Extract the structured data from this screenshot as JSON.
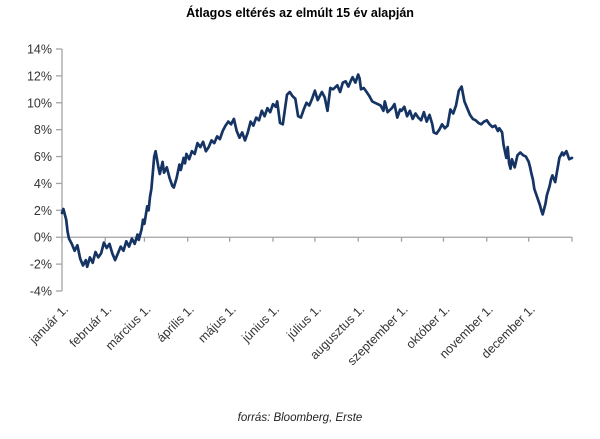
{
  "footer": {
    "source": "forrás: Bloomberg, Erste"
  },
  "chart_data": {
    "type": "line",
    "title": "Átlagos eltérés az elmúlt 15 év alapján",
    "xlabel": "",
    "ylabel": "",
    "legend": "none",
    "grid": false,
    "ylim": [
      -4,
      14
    ],
    "y_tick_values": [
      14,
      12,
      10,
      8,
      6,
      4,
      2,
      0,
      -2,
      -4
    ],
    "y_tick_labels": [
      "14%",
      "12%",
      "10%",
      "8%",
      "6%",
      "4%",
      "2%",
      "0%",
      "-2%",
      "-4%"
    ],
    "x_tick_labels": [
      "január 1.",
      "február 1.",
      "március 1.",
      "április 1.",
      "május 1.",
      "június 1.",
      "július 1.",
      "augusztus 1.",
      "szeptember 1.",
      "október 1.",
      "november 1.",
      "december 1."
    ],
    "x_range_days": [
      0,
      365
    ],
    "month_start_days": [
      0,
      31,
      59,
      90,
      120,
      151,
      181,
      212,
      243,
      273,
      304,
      334,
      365
    ],
    "line_color": "#153464",
    "axis_color": "#a3a3a3",
    "text_color": "#333333",
    "series": [
      {
        "name": "Átlagos eltérés az elmúlt 15 év alapján (napi, %)",
        "points": [
          [
            0,
            1.8
          ],
          [
            1,
            2.1
          ],
          [
            3,
            1.3
          ],
          [
            4,
            0.4
          ],
          [
            5,
            -0.1
          ],
          [
            7,
            -0.5
          ],
          [
            9,
            -1.0
          ],
          [
            11,
            -0.6
          ],
          [
            13,
            -1.6
          ],
          [
            15,
            -2.1
          ],
          [
            17,
            -1.7
          ],
          [
            18,
            -2.2
          ],
          [
            20,
            -1.5
          ],
          [
            22,
            -1.9
          ],
          [
            24,
            -1.1
          ],
          [
            26,
            -1.5
          ],
          [
            28,
            -1.2
          ],
          [
            30,
            -0.4
          ],
          [
            32,
            -0.8
          ],
          [
            34,
            -0.5
          ],
          [
            36,
            -1.2
          ],
          [
            38,
            -1.7
          ],
          [
            40,
            -1.2
          ],
          [
            42,
            -0.7
          ],
          [
            44,
            -1.0
          ],
          [
            46,
            -0.3
          ],
          [
            48,
            -0.7
          ],
          [
            50,
            -0.1
          ],
          [
            52,
            -0.5
          ],
          [
            54,
            0.2
          ],
          [
            55,
            -0.2
          ],
          [
            57,
            0.6
          ],
          [
            58,
            1.3
          ],
          [
            59,
            1.0
          ],
          [
            61,
            2.3
          ],
          [
            62,
            2.0
          ],
          [
            63,
            3.0
          ],
          [
            64,
            3.6
          ],
          [
            65,
            4.8
          ],
          [
            66,
            6.0
          ],
          [
            67,
            6.4
          ],
          [
            68,
            5.8
          ],
          [
            69,
            5.2
          ],
          [
            70,
            4.7
          ],
          [
            72,
            5.6
          ],
          [
            73,
            4.8
          ],
          [
            75,
            5.2
          ],
          [
            77,
            4.4
          ],
          [
            79,
            3.8
          ],
          [
            80,
            3.7
          ],
          [
            82,
            4.4
          ],
          [
            84,
            5.4
          ],
          [
            85,
            5.0
          ],
          [
            87,
            5.9
          ],
          [
            88,
            5.5
          ],
          [
            89,
            6.2
          ],
          [
            91,
            5.8
          ],
          [
            93,
            6.4
          ],
          [
            95,
            6.2
          ],
          [
            97,
            7.0
          ],
          [
            99,
            6.7
          ],
          [
            101,
            7.1
          ],
          [
            103,
            6.4
          ],
          [
            105,
            6.7
          ],
          [
            107,
            7.2
          ],
          [
            109,
            7.0
          ],
          [
            111,
            7.5
          ],
          [
            113,
            7.3
          ],
          [
            115,
            7.9
          ],
          [
            117,
            8.3
          ],
          [
            119,
            8.6
          ],
          [
            121,
            8.4
          ],
          [
            123,
            8.8
          ],
          [
            125,
            7.9
          ],
          [
            127,
            7.4
          ],
          [
            129,
            7.8
          ],
          [
            131,
            7.2
          ],
          [
            133,
            7.8
          ],
          [
            135,
            8.6
          ],
          [
            137,
            8.3
          ],
          [
            139,
            8.9
          ],
          [
            141,
            8.7
          ],
          [
            143,
            9.4
          ],
          [
            145,
            9.0
          ],
          [
            147,
            9.6
          ],
          [
            149,
            9.3
          ],
          [
            151,
            9.9
          ],
          [
            153,
            9.7
          ],
          [
            154,
            10.1
          ],
          [
            156,
            8.5
          ],
          [
            158,
            8.4
          ],
          [
            161,
            10.6
          ],
          [
            163,
            10.8
          ],
          [
            165,
            10.5
          ],
          [
            167,
            10.3
          ],
          [
            169,
            9.0
          ],
          [
            171,
            8.9
          ],
          [
            173,
            9.5
          ],
          [
            175,
            10.0
          ],
          [
            177,
            9.8
          ],
          [
            179,
            10.3
          ],
          [
            181,
            10.9
          ],
          [
            183,
            10.2
          ],
          [
            186,
            10.8
          ],
          [
            188,
            10.4
          ],
          [
            190,
            9.4
          ],
          [
            192,
            11.1
          ],
          [
            194,
            11.0
          ],
          [
            197,
            11.3
          ],
          [
            199,
            10.8
          ],
          [
            201,
            11.5
          ],
          [
            203,
            11.6
          ],
          [
            205,
            11.2
          ],
          [
            207,
            11.7
          ],
          [
            208,
            11.9
          ],
          [
            210,
            11.5
          ],
          [
            212,
            12.1
          ],
          [
            213,
            11.8
          ],
          [
            214,
            11.0
          ],
          [
            216,
            11.1
          ],
          [
            218,
            10.8
          ],
          [
            220,
            10.5
          ],
          [
            222,
            10.1
          ],
          [
            224,
            10.0
          ],
          [
            226,
            9.9
          ],
          [
            228,
            9.8
          ],
          [
            230,
            9.4
          ],
          [
            231,
            10.1
          ],
          [
            233,
            9.3
          ],
          [
            236,
            9.6
          ],
          [
            238,
            9.9
          ],
          [
            240,
            8.9
          ],
          [
            242,
            9.5
          ],
          [
            243,
            9.4
          ],
          [
            245,
            9.7
          ],
          [
            247,
            9.0
          ],
          [
            249,
            9.4
          ],
          [
            251,
            8.8
          ],
          [
            253,
            9.2
          ],
          [
            255,
            8.9
          ],
          [
            257,
            8.7
          ],
          [
            259,
            9.3
          ],
          [
            261,
            8.6
          ],
          [
            263,
            9.1
          ],
          [
            265,
            8.4
          ],
          [
            266,
            7.8
          ],
          [
            268,
            7.7
          ],
          [
            270,
            8.0
          ],
          [
            272,
            8.4
          ],
          [
            274,
            8.1
          ],
          [
            276,
            8.3
          ],
          [
            278,
            9.5
          ],
          [
            280,
            9.2
          ],
          [
            282,
            9.8
          ],
          [
            284,
            10.9
          ],
          [
            286,
            11.2
          ],
          [
            288,
            10.1
          ],
          [
            290,
            9.6
          ],
          [
            292,
            9.1
          ],
          [
            294,
            8.8
          ],
          [
            296,
            8.7
          ],
          [
            298,
            8.5
          ],
          [
            300,
            8.4
          ],
          [
            302,
            8.6
          ],
          [
            304,
            8.7
          ],
          [
            306,
            8.4
          ],
          [
            308,
            8.2
          ],
          [
            310,
            8.3
          ],
          [
            312,
            7.9
          ],
          [
            313,
            8.1
          ],
          [
            315,
            7.8
          ],
          [
            316,
            6.9
          ],
          [
            318,
            5.9
          ],
          [
            319,
            6.7
          ],
          [
            320,
            5.5
          ],
          [
            321,
            5.1
          ],
          [
            322,
            5.8
          ],
          [
            324,
            5.2
          ],
          [
            326,
            6.1
          ],
          [
            328,
            6.3
          ],
          [
            330,
            6.1
          ],
          [
            332,
            6.0
          ],
          [
            334,
            5.6
          ],
          [
            335,
            5.2
          ],
          [
            336,
            4.7
          ],
          [
            337,
            4.3
          ],
          [
            338,
            3.6
          ],
          [
            340,
            3.0
          ],
          [
            342,
            2.4
          ],
          [
            343,
            2.0
          ],
          [
            344,
            1.7
          ],
          [
            346,
            2.5
          ],
          [
            347,
            3.1
          ],
          [
            349,
            3.8
          ],
          [
            350,
            4.3
          ],
          [
            351,
            4.6
          ],
          [
            353,
            4.1
          ],
          [
            354,
            4.7
          ],
          [
            356,
            5.9
          ],
          [
            358,
            6.3
          ],
          [
            359,
            6.1
          ],
          [
            361,
            6.4
          ],
          [
            363,
            5.8
          ],
          [
            365,
            5.9
          ]
        ]
      }
    ]
  }
}
